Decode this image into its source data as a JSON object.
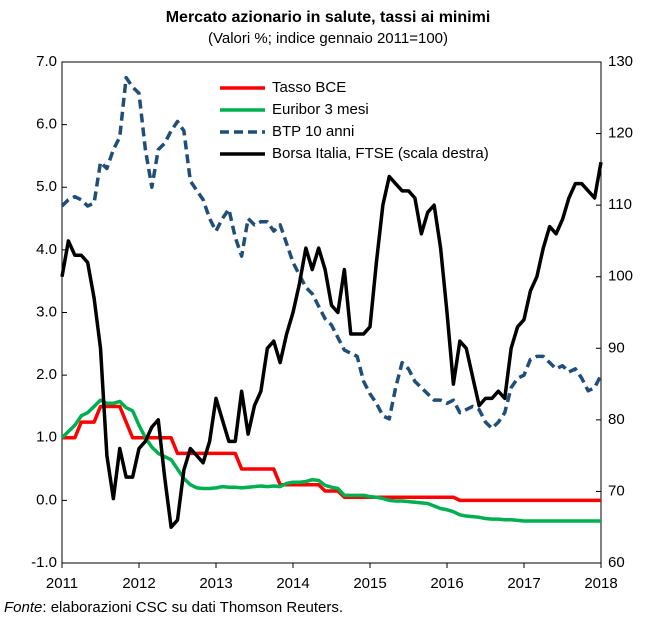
{
  "chart_data": {
    "type": "line",
    "title": "Mercato azionario in salute, tassi ai minimi",
    "subtitle": "(Valori %; indice gennaio 2011=100)",
    "source_label": "Fonte",
    "source_text": ": elaborazioni CSC su dati Thomson Reuters.",
    "xlim": [
      2011,
      2018
    ],
    "xticks": [
      2011,
      2012,
      2013,
      2014,
      2015,
      2016,
      2017,
      2018
    ],
    "ylim": [
      -1,
      7
    ],
    "yticks": [
      {
        "value": -1,
        "label": "-1.0"
      },
      {
        "value": 0,
        "label": "0.0"
      },
      {
        "value": 1,
        "label": "1.0"
      },
      {
        "value": 2,
        "label": "2.0"
      },
      {
        "value": 3,
        "label": "3.0"
      },
      {
        "value": 4,
        "label": "4.0"
      },
      {
        "value": 5,
        "label": "5.0"
      },
      {
        "value": 6,
        "label": "6.0"
      },
      {
        "value": 7,
        "label": "7.0"
      }
    ],
    "y2lim": [
      60,
      130
    ],
    "y2ticks": [
      60,
      70,
      80,
      90,
      100,
      110,
      120,
      130
    ],
    "x": [
      2011,
      2011.083,
      2011.167,
      2011.25,
      2011.333,
      2011.417,
      2011.5,
      2011.583,
      2011.667,
      2011.75,
      2011.833,
      2011.917,
      2012,
      2012.083,
      2012.167,
      2012.25,
      2012.333,
      2012.417,
      2012.5,
      2012.583,
      2012.667,
      2012.75,
      2012.833,
      2012.917,
      2013,
      2013.083,
      2013.167,
      2013.25,
      2013.333,
      2013.417,
      2013.5,
      2013.583,
      2013.667,
      2013.75,
      2013.833,
      2013.917,
      2014,
      2014.083,
      2014.167,
      2014.25,
      2014.333,
      2014.417,
      2014.5,
      2014.583,
      2014.667,
      2014.75,
      2014.833,
      2014.917,
      2015,
      2015.083,
      2015.167,
      2015.25,
      2015.333,
      2015.417,
      2015.5,
      2015.583,
      2015.667,
      2015.75,
      2015.833,
      2015.917,
      2016,
      2016.083,
      2016.167,
      2016.25,
      2016.333,
      2016.417,
      2016.5,
      2016.583,
      2016.667,
      2016.75,
      2016.833,
      2016.917,
      2017,
      2017.083,
      2017.167,
      2017.25,
      2017.333,
      2017.417,
      2017.5,
      2017.583,
      2017.667,
      2017.75,
      2017.833,
      2017.917,
      2018
    ],
    "series": [
      {
        "name": "Tasso BCE",
        "color": "#ff0000",
        "dash": false,
        "values": [
          1,
          1,
          1,
          1.25,
          1.25,
          1.25,
          1.5,
          1.5,
          1.5,
          1.5,
          1.25,
          1,
          1,
          1,
          1,
          1,
          1,
          1,
          0.75,
          0.75,
          0.75,
          0.75,
          0.75,
          0.75,
          0.75,
          0.75,
          0.75,
          0.75,
          0.5,
          0.5,
          0.5,
          0.5,
          0.5,
          0.5,
          0.25,
          0.25,
          0.25,
          0.25,
          0.25,
          0.25,
          0.25,
          0.15,
          0.15,
          0.15,
          0.05,
          0.05,
          0.05,
          0.05,
          0.05,
          0.05,
          0.05,
          0.05,
          0.05,
          0.05,
          0.05,
          0.05,
          0.05,
          0.05,
          0.05,
          0.05,
          0.05,
          0.05,
          0,
          0,
          0,
          0,
          0,
          0,
          0,
          0,
          0,
          0,
          0,
          0,
          0,
          0,
          0,
          0,
          0,
          0,
          0,
          0,
          0,
          0,
          0
        ]
      },
      {
        "name": "Euribor 3 mesi",
        "color": "#00b050",
        "dash": false,
        "values": [
          1,
          1.1,
          1.2,
          1.35,
          1.4,
          1.5,
          1.6,
          1.55,
          1.55,
          1.58,
          1.48,
          1.43,
          1.2,
          1,
          0.85,
          0.75,
          0.7,
          0.65,
          0.5,
          0.35,
          0.25,
          0.2,
          0.19,
          0.19,
          0.2,
          0.22,
          0.21,
          0.21,
          0.2,
          0.21,
          0.22,
          0.23,
          0.22,
          0.23,
          0.22,
          0.27,
          0.29,
          0.29,
          0.3,
          0.33,
          0.32,
          0.24,
          0.21,
          0.19,
          0.08,
          0.08,
          0.08,
          0.08,
          0.06,
          0.05,
          0.03,
          0,
          -0.01,
          -0.01,
          -0.02,
          -0.03,
          -0.04,
          -0.05,
          -0.09,
          -0.13,
          -0.15,
          -0.18,
          -0.23,
          -0.25,
          -0.26,
          -0.27,
          -0.29,
          -0.3,
          -0.3,
          -0.31,
          -0.31,
          -0.32,
          -0.33,
          -0.33,
          -0.33,
          -0.33,
          -0.33,
          -0.33,
          -0.33,
          -0.33,
          -0.33,
          -0.33,
          -0.33,
          -0.33,
          -0.33
        ]
      },
      {
        "name": "BTP 10 anni",
        "color": "#1f4e79",
        "dash": true,
        "values": [
          4.7,
          4.8,
          4.85,
          4.8,
          4.7,
          4.75,
          5.4,
          5.3,
          5.6,
          5.8,
          6.75,
          6.6,
          6.5,
          5.6,
          5,
          5.6,
          5.7,
          5.9,
          6.05,
          5.9,
          5.1,
          4.95,
          4.8,
          4.5,
          4.3,
          4.5,
          4.65,
          4.2,
          3.9,
          4.5,
          4.4,
          4.45,
          4.45,
          4.3,
          4.4,
          4.1,
          3.8,
          3.6,
          3.4,
          3.3,
          3.1,
          2.9,
          2.8,
          2.6,
          2.4,
          2.35,
          2.3,
          1.9,
          1.7,
          1.55,
          1.35,
          1.3,
          1.8,
          2.2,
          2.1,
          1.9,
          1.8,
          1.7,
          1.6,
          1.6,
          1.55,
          1.6,
          1.4,
          1.45,
          1.5,
          1.45,
          1.25,
          1.15,
          1.25,
          1.4,
          1.8,
          1.95,
          2,
          2.25,
          2.3,
          2.3,
          2.2,
          2.1,
          2.15,
          2.05,
          2.1,
          1.95,
          1.75,
          1.8,
          2
        ]
      },
      {
        "name": "Borsa Italia, FTSE  (scala destra)",
        "color": "#000000",
        "dash": false,
        "axis": "y2",
        "values": [
          100,
          105,
          103,
          103,
          102,
          97,
          90,
          75,
          69,
          76,
          72,
          72,
          76,
          77,
          79,
          80,
          72,
          65,
          66,
          73,
          76,
          75,
          74,
          77,
          83,
          80,
          77,
          77,
          84,
          78,
          82,
          84,
          90,
          91,
          88,
          92,
          95,
          99,
          104,
          101,
          104,
          101,
          96,
          95,
          101,
          92,
          92,
          92,
          93,
          102,
          110,
          114,
          113,
          112,
          112,
          111,
          106,
          109,
          110,
          104,
          95,
          85,
          91,
          90,
          86,
          82,
          83,
          83,
          84,
          83,
          90,
          93,
          94,
          98,
          100,
          104,
          107,
          106,
          108,
          111,
          113,
          113,
          112,
          111,
          116
        ]
      }
    ]
  }
}
